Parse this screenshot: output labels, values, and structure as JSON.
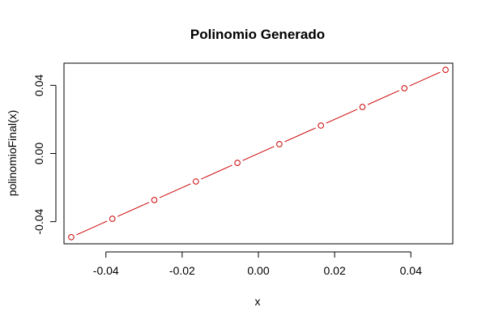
{
  "chart_data": {
    "type": "line",
    "title": "Polinomio Generado",
    "xlabel": "x",
    "ylabel": "polinomioFinal(x)",
    "xlim": [
      -0.051,
      0.051
    ],
    "ylim": [
      -0.053,
      0.053
    ],
    "x_ticks": [
      -0.04,
      -0.02,
      0.0,
      0.02,
      0.04
    ],
    "x_tick_labels": [
      "-0.04",
      "-0.02",
      "0.00",
      "0.02",
      "0.04"
    ],
    "y_ticks": [
      -0.04,
      0.0,
      0.04
    ],
    "y_tick_labels": [
      "-0.04",
      "0.00",
      "0.04"
    ],
    "grid": false,
    "legend": "none",
    "marker": "open-circle",
    "series": [
      {
        "color": "#cc0000",
        "x": [
          -0.0491,
          -0.0383,
          -0.0273,
          -0.0164,
          -0.0055,
          0.0055,
          0.0164,
          0.0273,
          0.0383,
          0.0491
        ],
        "y": [
          -0.0491,
          -0.0383,
          -0.0273,
          -0.0164,
          -0.0055,
          0.0055,
          0.0164,
          0.0273,
          0.0383,
          0.0491
        ]
      }
    ]
  }
}
